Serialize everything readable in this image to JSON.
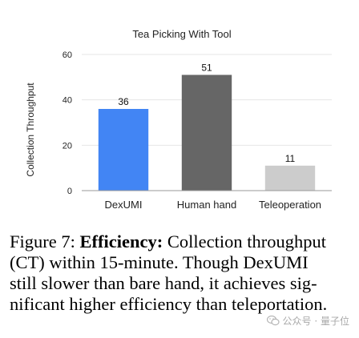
{
  "chart_data": {
    "type": "bar",
    "title": "Tea Picking With Tool",
    "ylabel": "Collection Throughput",
    "xlabel": "",
    "categories": [
      "DexUMI",
      "Human hand",
      "Teleoperation"
    ],
    "values": [
      36,
      51,
      11
    ],
    "value_labels": [
      "36",
      "51",
      "11"
    ],
    "ylim": [
      0,
      60
    ],
    "yticks": [
      0,
      20,
      40,
      60
    ],
    "ytick_labels": [
      "0",
      "20",
      "40",
      "60"
    ],
    "bar_colors": [
      "#4285f4",
      "#666666",
      "#cccccc"
    ],
    "grid": true,
    "legend": "none"
  },
  "caption": {
    "figure_label": "Figure 7:",
    "bold_label": "Efficiency:",
    "line1_rest": "Collection throughput",
    "line2": "(CT) within 15-minute.  Though DexUMI",
    "line3": "still slower than bare hand, it achieves sig-",
    "line4": "nificant higher efficiency than teleportation."
  },
  "watermark": {
    "text": "公众号 · 量子位"
  }
}
